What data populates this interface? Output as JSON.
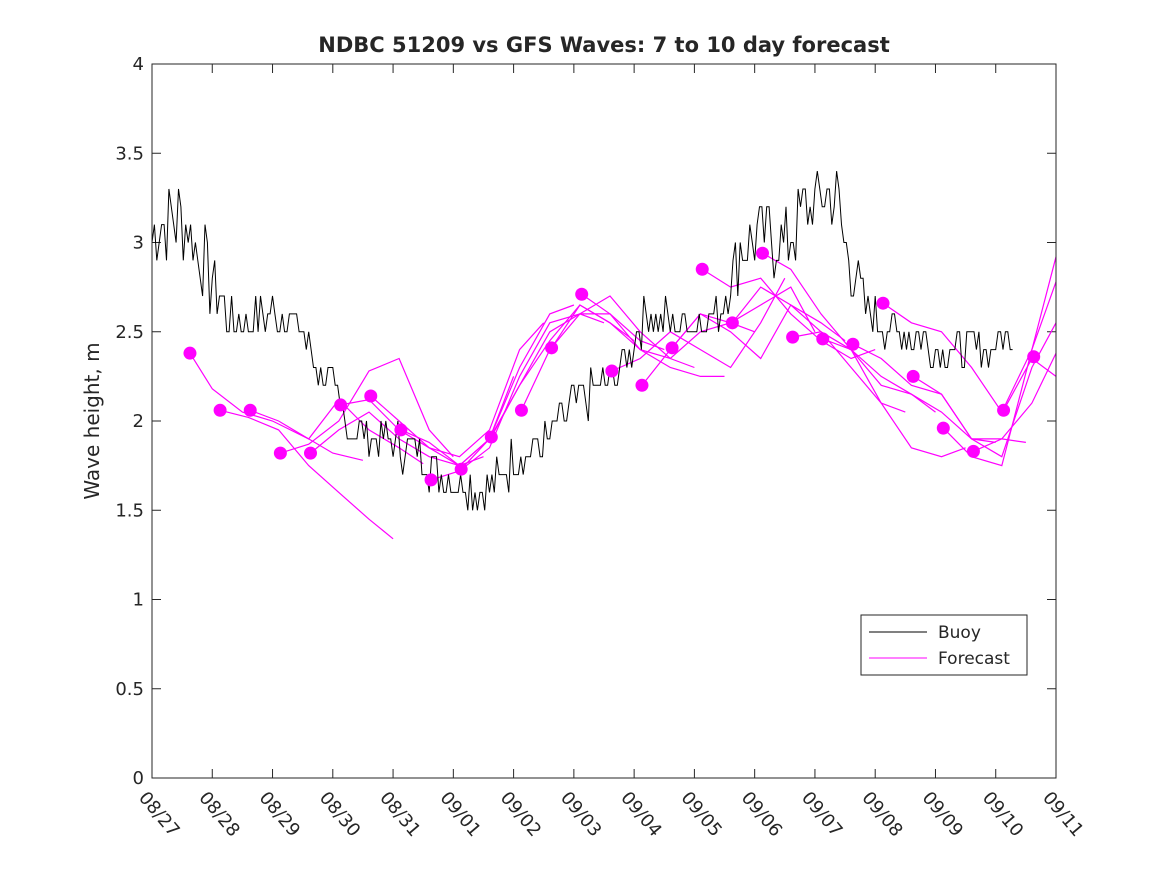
{
  "chart_data": {
    "type": "line",
    "title": "NDBC 51209 vs GFS Waves: 7 to 10 day forecast",
    "xlabel": "",
    "ylabel": "Wave height, m",
    "xlim": [
      0,
      15
    ],
    "ylim": [
      0,
      4
    ],
    "x_tick_labels": [
      "08/27",
      "08/28",
      "08/29",
      "08/30",
      "08/31",
      "09/01",
      "09/02",
      "09/03",
      "09/04",
      "09/05",
      "09/06",
      "09/07",
      "09/08",
      "09/09",
      "09/10",
      "09/11"
    ],
    "y_ticks": [
      0,
      0.5,
      1,
      1.5,
      2,
      2.5,
      3,
      3.5,
      4
    ],
    "y_tick_labels": [
      "0",
      "0.5",
      "1",
      "1.5",
      "2",
      "2.5",
      "3",
      "3.5",
      "4"
    ],
    "x_units": "days since 08/27 00:00",
    "legend": {
      "position": "bottom-right",
      "entries": [
        "Buoy",
        "Forecast"
      ]
    },
    "colors": {
      "buoy": "#000000",
      "forecast": "#ff00ff",
      "axes": "#262626"
    },
    "buoy": {
      "name": "Buoy",
      "x": [
        0.0,
        0.5,
        0.9,
        1.3,
        1.8,
        2.3,
        2.9,
        3.3,
        3.8,
        4.3,
        4.8,
        5.3,
        5.6,
        6.0,
        6.5,
        7.0,
        7.5,
        7.8,
        8.2,
        8.6,
        9.0,
        9.4,
        9.8,
        10.2,
        10.5,
        10.9,
        11.3,
        11.5,
        11.9,
        12.3,
        12.7,
        13.2,
        13.6,
        13.9,
        14.3
      ],
      "y": [
        3.05,
        3.15,
        2.85,
        2.55,
        2.6,
        2.6,
        2.2,
        1.98,
        1.9,
        1.85,
        1.7,
        1.65,
        1.6,
        1.78,
        1.88,
        2.1,
        2.2,
        2.3,
        2.6,
        2.55,
        2.55,
        2.6,
        3.0,
        3.05,
        3.0,
        3.2,
        3.3,
        3.0,
        2.6,
        2.5,
        2.45,
        2.4,
        2.4,
        2.4,
        2.5
      ]
    },
    "forecast": {
      "name": "Forecast",
      "runs": [
        {
          "x": [
            0.63,
            1.0,
            1.5,
            2.0,
            2.6,
            3.0,
            3.5
          ],
          "y": [
            2.38,
            2.18,
            2.05,
            2.0,
            1.9,
            1.82,
            1.78
          ]
        },
        {
          "x": [
            1.13,
            1.6,
            2.1,
            2.6,
            3.1,
            3.6,
            4.0
          ],
          "y": [
            2.06,
            2.02,
            1.95,
            1.75,
            1.6,
            1.45,
            1.34
          ]
        },
        {
          "x": [
            1.63,
            2.1,
            2.6,
            3.1,
            3.6,
            4.1,
            4.5
          ],
          "y": [
            2.06,
            2.0,
            1.9,
            2.12,
            1.95,
            1.85,
            1.76
          ]
        },
        {
          "x": [
            2.13,
            2.6,
            3.1,
            3.6,
            4.1,
            4.6,
            5.0
          ],
          "y": [
            1.82,
            1.87,
            2.0,
            2.28,
            2.35,
            1.95,
            1.8
          ]
        },
        {
          "x": [
            2.63,
            3.1,
            3.6,
            4.1,
            4.6,
            5.1,
            5.5
          ],
          "y": [
            1.82,
            1.95,
            2.05,
            1.9,
            1.8,
            1.75,
            1.8
          ]
        },
        {
          "x": [
            3.13,
            3.6,
            4.1,
            4.6,
            5.1,
            5.6,
            6.0
          ],
          "y": [
            2.09,
            2.12,
            1.95,
            1.85,
            1.75,
            1.9,
            2.25
          ]
        },
        {
          "x": [
            3.63,
            4.1,
            4.6,
            5.1,
            5.6,
            6.1,
            6.5
          ],
          "y": [
            2.14,
            2.0,
            1.85,
            1.8,
            1.95,
            2.4,
            2.55
          ]
        },
        {
          "x": [
            4.13,
            4.6,
            5.1,
            5.6,
            6.1,
            6.6,
            7.0
          ],
          "y": [
            1.95,
            1.88,
            1.75,
            1.9,
            2.3,
            2.6,
            2.65
          ]
        },
        {
          "x": [
            4.63,
            5.1,
            5.6,
            6.1,
            6.6,
            7.1,
            7.5
          ],
          "y": [
            1.67,
            1.72,
            1.85,
            2.25,
            2.55,
            2.6,
            2.55
          ]
        },
        {
          "x": [
            5.13,
            5.6,
            6.1,
            6.6,
            7.1,
            7.6,
            8.0
          ],
          "y": [
            1.73,
            1.9,
            2.2,
            2.45,
            2.65,
            2.55,
            2.45
          ]
        },
        {
          "x": [
            5.63,
            6.1,
            6.6,
            7.1,
            7.6,
            8.1,
            8.5
          ],
          "y": [
            1.91,
            2.2,
            2.5,
            2.6,
            2.6,
            2.45,
            2.4
          ]
        },
        {
          "x": [
            6.13,
            6.6,
            7.1,
            7.6,
            8.1,
            8.6,
            9.0
          ],
          "y": [
            2.06,
            2.4,
            2.6,
            2.7,
            2.5,
            2.35,
            2.3
          ]
        },
        {
          "x": [
            6.63,
            7.1,
            7.6,
            8.1,
            8.6,
            9.1,
            9.5
          ],
          "y": [
            2.41,
            2.65,
            2.55,
            2.4,
            2.3,
            2.25,
            2.25
          ]
        },
        {
          "x": [
            7.13,
            7.6,
            8.1,
            8.6,
            9.1,
            9.6,
            10.0
          ],
          "y": [
            2.71,
            2.6,
            2.4,
            2.35,
            2.5,
            2.55,
            2.5
          ]
        },
        {
          "x": [
            7.63,
            8.1,
            8.6,
            9.1,
            9.6,
            10.1,
            10.5
          ],
          "y": [
            2.28,
            2.35,
            2.5,
            2.4,
            2.3,
            2.55,
            2.8
          ]
        },
        {
          "x": [
            8.13,
            8.6,
            9.1,
            9.6,
            10.1,
            10.6,
            11.0
          ],
          "y": [
            2.2,
            2.4,
            2.6,
            2.55,
            2.65,
            2.75,
            2.5
          ]
        },
        {
          "x": [
            8.63,
            9.1,
            9.6,
            10.1,
            10.6,
            11.1,
            11.5
          ],
          "y": [
            2.41,
            2.6,
            2.5,
            2.35,
            2.65,
            2.55,
            2.45
          ]
        },
        {
          "x": [
            9.13,
            9.6,
            10.1,
            10.6,
            11.1,
            11.6,
            12.0
          ],
          "y": [
            2.85,
            2.75,
            2.8,
            2.6,
            2.45,
            2.35,
            2.4
          ]
        },
        {
          "x": [
            9.63,
            10.1,
            10.6,
            11.1,
            11.6,
            12.1,
            12.5
          ],
          "y": [
            2.55,
            2.75,
            2.65,
            2.5,
            2.3,
            2.1,
            2.05
          ]
        },
        {
          "x": [
            10.13,
            10.6,
            11.1,
            11.6,
            12.1,
            12.6,
            13.0
          ],
          "y": [
            2.94,
            2.85,
            2.6,
            2.4,
            2.2,
            2.15,
            2.05
          ]
        },
        {
          "x": [
            10.63,
            11.1,
            11.6,
            12.1,
            12.6,
            13.1,
            13.5
          ],
          "y": [
            2.47,
            2.5,
            2.4,
            2.1,
            1.85,
            1.8,
            1.85
          ]
        },
        {
          "x": [
            11.13,
            11.6,
            12.1,
            12.6,
            13.1,
            13.6,
            14.0
          ],
          "y": [
            2.46,
            2.4,
            2.25,
            2.15,
            2.05,
            1.9,
            1.88
          ]
        },
        {
          "x": [
            11.63,
            12.1,
            12.6,
            13.1,
            13.6,
            14.1,
            14.5
          ],
          "y": [
            2.43,
            2.35,
            2.2,
            2.15,
            1.9,
            1.9,
            1.88
          ]
        },
        {
          "x": [
            12.13,
            12.6,
            13.1,
            13.6,
            14.1,
            14.6,
            15.0
          ],
          "y": [
            2.66,
            2.55,
            2.5,
            2.3,
            2.05,
            2.4,
            2.92
          ]
        },
        {
          "x": [
            12.63,
            13.1,
            13.6,
            14.1,
            14.6,
            15.0
          ],
          "y": [
            2.25,
            2.15,
            1.9,
            1.8,
            2.3,
            2.55
          ]
        },
        {
          "x": [
            13.13,
            13.6,
            14.1,
            14.6,
            15.0
          ],
          "y": [
            1.96,
            1.8,
            1.75,
            2.4,
            2.78
          ]
        },
        {
          "x": [
            13.63,
            14.1,
            14.6,
            15.0
          ],
          "y": [
            1.83,
            1.9,
            2.1,
            2.38
          ]
        },
        {
          "x": [
            14.13,
            14.6,
            15.0
          ],
          "y": [
            2.06,
            2.35,
            2.25
          ]
        }
      ],
      "markers": {
        "x": [
          0.63,
          1.13,
          1.63,
          2.13,
          2.63,
          3.13,
          3.63,
          4.13,
          4.63,
          5.13,
          5.63,
          6.13,
          6.63,
          7.13,
          7.63,
          8.13,
          8.63,
          9.13,
          9.63,
          10.13,
          10.63,
          11.13,
          11.63,
          12.13,
          12.63,
          13.13,
          13.63,
          14.13,
          14.63
        ],
        "y": [
          2.38,
          2.06,
          2.06,
          1.82,
          1.82,
          2.09,
          2.14,
          1.95,
          1.67,
          1.73,
          1.91,
          2.06,
          2.41,
          2.71,
          2.28,
          2.2,
          2.41,
          2.85,
          2.55,
          2.94,
          2.47,
          2.46,
          2.43,
          2.66,
          2.25,
          1.96,
          1.83,
          2.06,
          2.36
        ]
      }
    }
  }
}
